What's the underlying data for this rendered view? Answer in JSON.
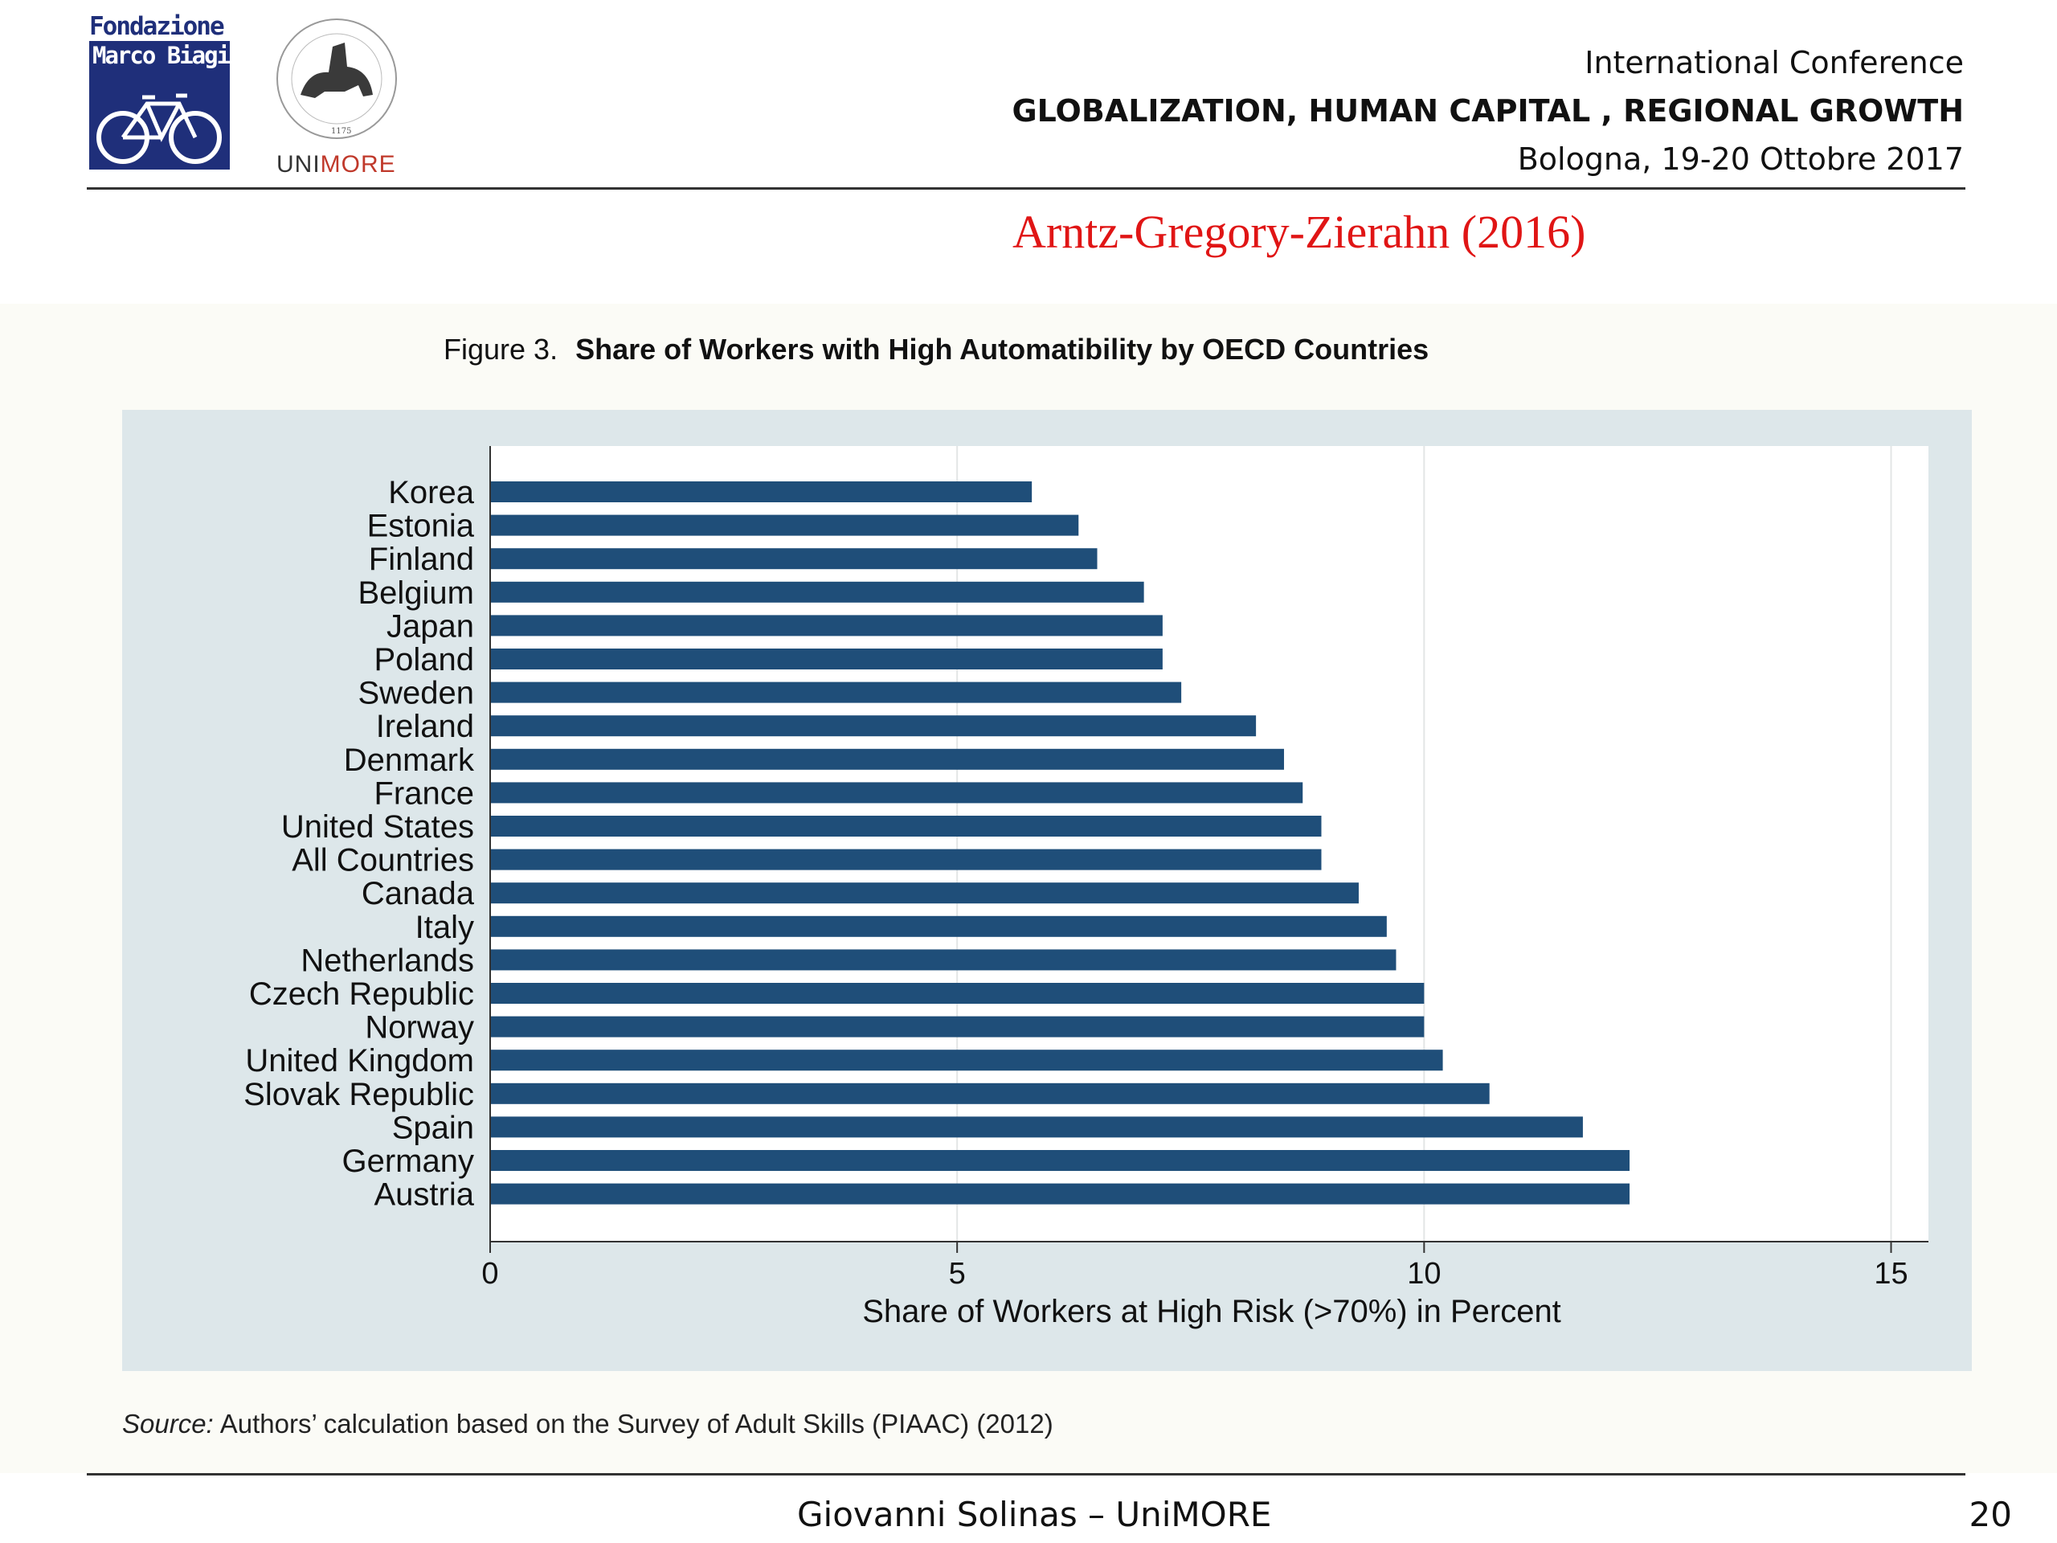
{
  "header": {
    "org_logo_text": [
      "Fondazione",
      "Marco Biagi"
    ],
    "university_logo_text": "UNIMORE",
    "university_logo_year": "1175",
    "conference_label": "International Conference",
    "conference_title": "GLOBALIZATION, HUMAN CAPITAL , REGIONAL GROWTH",
    "conference_place_date": "Bologna, 19-20 Ottobre 2017"
  },
  "citation": "Arntz-Gregory-Zierahn (2016)",
  "figure": {
    "label": "Figure 3.",
    "title": "Share of Workers with High Automatibility by OECD Countries",
    "source_prefix": "Source:",
    "source_text": "Authors’ calculation based on the Survey of Adult Skills (PIAAC) (2012)"
  },
  "chart_data": {
    "type": "bar",
    "orientation": "horizontal",
    "categories": [
      "Korea",
      "Estonia",
      "Finland",
      "Belgium",
      "Japan",
      "Poland",
      "Sweden",
      "Ireland",
      "Denmark",
      "France",
      "United States",
      "All Countries",
      "Canada",
      "Italy",
      "Netherlands",
      "Czech Republic",
      "Norway",
      "United Kingdom",
      "Slovak Republic",
      "Spain",
      "Germany",
      "Austria"
    ],
    "values": [
      5.8,
      6.3,
      6.5,
      7.0,
      7.2,
      7.2,
      7.4,
      8.2,
      8.5,
      8.7,
      8.9,
      8.9,
      9.3,
      9.6,
      9.7,
      10.0,
      10.0,
      10.2,
      10.7,
      11.7,
      12.2,
      12.2
    ],
    "xlabel": "Share of Workers at High Risk (>70%) in Percent",
    "xlim": [
      0,
      15.4
    ],
    "xticks": [
      0,
      5,
      10,
      15
    ],
    "grid": true,
    "bar_color": "#1f4e79"
  },
  "footer": {
    "author": "Giovanni Solinas – UniMORE",
    "page_number": "20"
  }
}
